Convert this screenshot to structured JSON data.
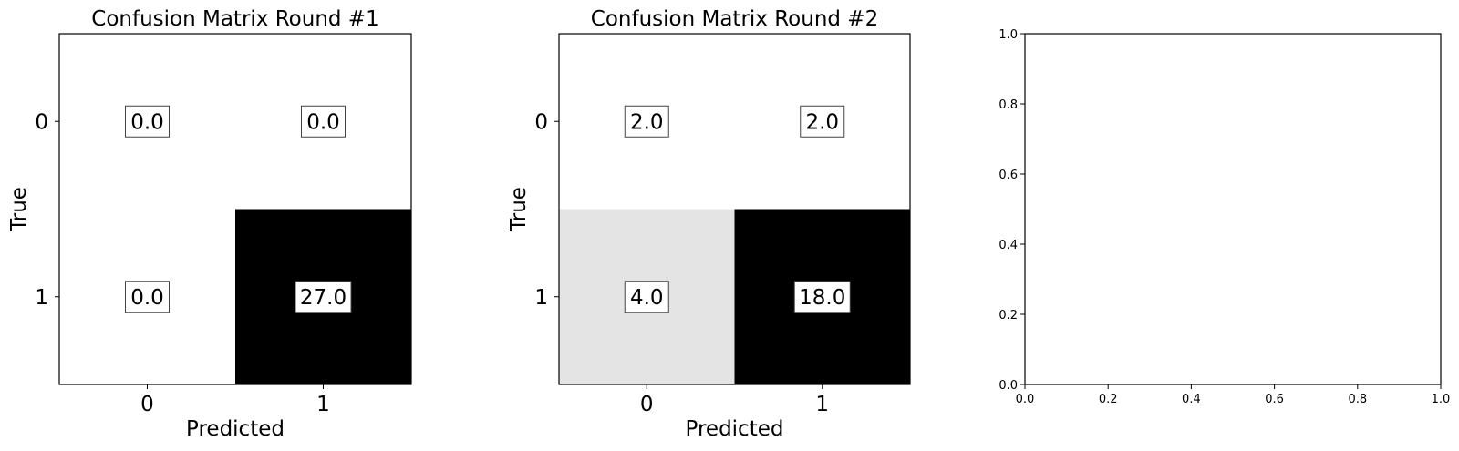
{
  "chart_data": [
    {
      "type": "heatmap",
      "title": "Confusion Matrix Round #1",
      "xlabel": "Predicted",
      "ylabel": "True",
      "x_categories": [
        "0",
        "1"
      ],
      "y_categories": [
        "0",
        "1"
      ],
      "values": [
        [
          0.0,
          0.0
        ],
        [
          0.0,
          27.0
        ]
      ],
      "value_labels": [
        [
          "0.0",
          "0.0"
        ],
        [
          "0.0",
          "27.0"
        ]
      ],
      "colormap": "Greys",
      "grid": false
    },
    {
      "type": "heatmap",
      "title": "Confusion Matrix Round #2",
      "xlabel": "Predicted",
      "ylabel": "True",
      "x_categories": [
        "0",
        "1"
      ],
      "y_categories": [
        "0",
        "1"
      ],
      "values": [
        [
          2.0,
          2.0
        ],
        [
          4.0,
          18.0
        ]
      ],
      "value_labels": [
        [
          "2.0",
          "2.0"
        ],
        [
          "4.0",
          "18.0"
        ]
      ],
      "colormap": "Greys",
      "grid": false
    },
    {
      "type": "scatter",
      "title": "",
      "xlabel": "",
      "ylabel": "",
      "xlim": [
        0.0,
        1.0
      ],
      "ylim": [
        0.0,
        1.0
      ],
      "x_ticks": [
        "0.0",
        "0.2",
        "0.4",
        "0.6",
        "0.8",
        "1.0"
      ],
      "y_ticks": [
        "0.0",
        "0.2",
        "0.4",
        "0.6",
        "0.8",
        "1.0"
      ],
      "series": [],
      "grid": false
    }
  ]
}
